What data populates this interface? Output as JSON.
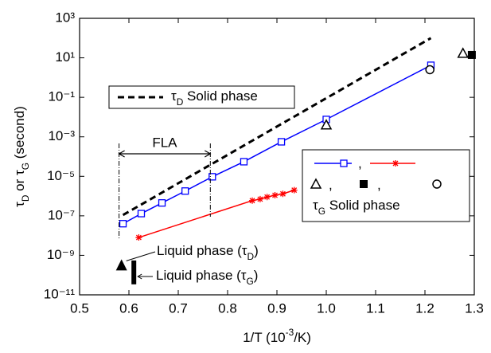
{
  "chart_data": {
    "type": "line",
    "xlabel": [
      {
        "t": "1/T (10"
      },
      {
        "t": "-3",
        "sup": true
      },
      {
        "t": "/K)"
      }
    ],
    "ylabel": [
      {
        "t": "τ"
      },
      {
        "t": "D",
        "sub": true
      },
      {
        "t": " or τ"
      },
      {
        "t": "G",
        "sub": true
      },
      {
        "t": " (second)"
      }
    ],
    "xlim": [
      0.5,
      1.3
    ],
    "xticks": [
      0.5,
      0.6,
      0.7,
      0.8,
      0.9,
      {
        "value": 1.0,
        "label": "1.0"
      },
      1.1,
      1.2,
      1.3
    ],
    "ylim": [
      1e-11,
      1000
    ],
    "log_y": true,
    "yticks": [
      {
        "value": 1e-11,
        "label": "10⁻¹¹"
      },
      {
        "value": 1e-09,
        "label": "10⁻⁹"
      },
      {
        "value": 1e-07,
        "label": "10⁻⁷"
      },
      {
        "value": 1e-05,
        "label": "10⁻⁵"
      },
      {
        "value": 0.001,
        "label": "10⁻³"
      },
      {
        "value": 0.1,
        "label": "10⁻¹"
      },
      {
        "value": 10,
        "label": "10¹"
      },
      {
        "value": 1000,
        "label": "10³"
      }
    ],
    "series": [
      {
        "color": "#000000",
        "line": "dashed",
        "marker": "none",
        "x": [
          0.588,
          1.212
        ],
        "values": [
          1.1e-07,
          100
        ]
      },
      {
        "color": "#0000ff",
        "line": "solid",
        "marker": "open-square",
        "x": [
          0.588,
          0.625,
          0.667,
          0.714,
          0.769,
          0.833,
          0.909,
          1.0,
          1.212
        ],
        "values": [
          4e-08,
          1.3e-07,
          4.5e-07,
          1.8e-06,
          9.5e-06,
          5.5e-05,
          0.00056,
          0.0076,
          4.2
        ]
      },
      {
        "color": "#ff0000",
        "line": "solid",
        "marker": "star",
        "x": [
          0.62,
          0.85,
          0.866,
          0.88,
          0.896,
          0.912,
          0.935
        ],
        "values": [
          8e-09,
          5.9e-07,
          7e-07,
          9e-07,
          1.1e-06,
          1.3e-06,
          2e-06
        ]
      },
      {
        "color": "#000000",
        "line": "none",
        "marker": "open-triangle",
        "x": [
          1.0,
          1.277
        ],
        "values": [
          0.004,
          17
        ]
      },
      {
        "color": "#000000",
        "line": "none",
        "marker": "filled-square",
        "x": [
          1.295
        ],
        "values": [
          14
        ]
      },
      {
        "color": "#000000",
        "line": "none",
        "marker": "open-circle",
        "x": [
          1.21
        ],
        "values": [
          2.5
        ]
      },
      {
        "color": "#000000",
        "line": "none",
        "marker": "filled-triangle",
        "x": [
          0.585
        ],
        "values": [
          3e-10
        ]
      },
      {
        "color": "#000000",
        "line": "none",
        "marker": "bar",
        "x": [
          0.61
        ],
        "low": [
          3.4e-11
        ],
        "high": [
          5.5e-10
        ]
      }
    ],
    "legend_solid_d": [
      {
        "t": "τ"
      },
      {
        "t": "D",
        "sub": true
      },
      {
        "t": " Solid phase"
      }
    ],
    "legend_solid_g": [
      {
        "t": "τ"
      },
      {
        "t": "G",
        "sub": true
      },
      {
        "t": " Solid phase"
      }
    ],
    "legend_separator": ",",
    "fla": {
      "label": "FLA",
      "x": [
        0.58,
        0.765
      ]
    },
    "liquid_d": [
      {
        "t": "Liquid phase (τ"
      },
      {
        "t": "D",
        "sub": true
      },
      {
        "t": ")"
      }
    ],
    "liquid_g": [
      {
        "t": "Liquid phase (τ"
      },
      {
        "t": "G",
        "sub": true
      },
      {
        "t": ")"
      }
    ]
  }
}
